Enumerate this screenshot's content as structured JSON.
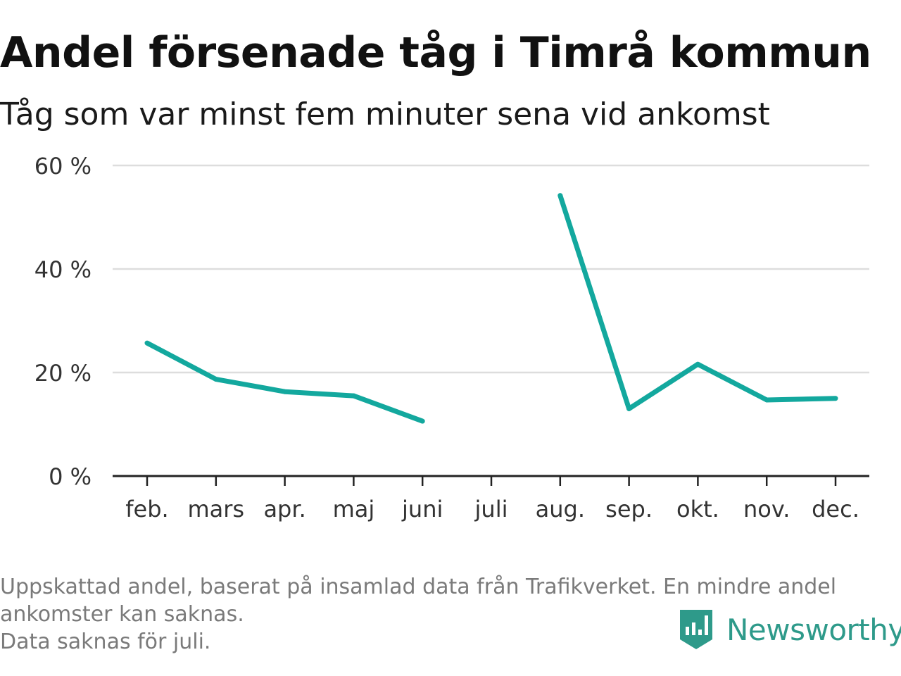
{
  "title": "Andel försenade tåg i Timrå kommun",
  "subtitle": "Tåg som var minst fem minuter sena vid ankomst",
  "footnote": {
    "line1": "Uppskattad andel, baserat på insamlad data från Trafikverket. En mindre andel",
    "line2": "ankomster kan saknas.",
    "line3": "Data saknas för juli."
  },
  "brand": {
    "name": "Newsworthy",
    "icon": "newsworthy-logo-icon",
    "color": "#2e9a8a"
  },
  "chart_data": {
    "type": "line",
    "categories": [
      "feb.",
      "mars",
      "apr.",
      "maj",
      "juni",
      "juli",
      "aug.",
      "sep.",
      "okt.",
      "nov.",
      "dec."
    ],
    "series": [
      {
        "values": [
          25.7,
          18.7,
          16.3,
          15.5,
          10.6,
          null,
          54.2,
          13.0,
          21.6,
          14.7,
          15.0
        ]
      }
    ],
    "ylim": [
      0,
      60
    ],
    "yticks": [
      0,
      20,
      40,
      60
    ],
    "ytick_labels": [
      "0 %",
      "20 %",
      "40 %",
      "60 %"
    ],
    "grid": true,
    "colors": {
      "line": "#13a89e",
      "grid": "#dddddd",
      "axis": "#222222"
    }
  }
}
